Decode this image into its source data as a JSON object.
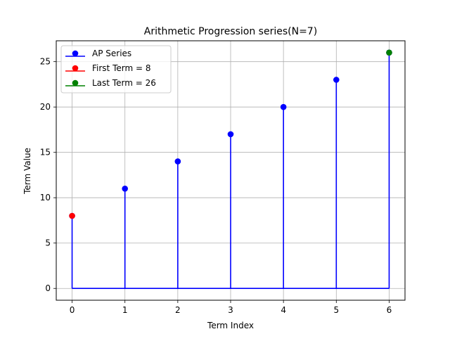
{
  "chart_data": {
    "type": "stem",
    "title": "Arithmetic Progression series(N=7)",
    "xlabel": "Term Index",
    "ylabel": "Term Value",
    "x": [
      0,
      1,
      2,
      3,
      4,
      5,
      6
    ],
    "values": [
      8,
      11,
      14,
      17,
      20,
      23,
      26
    ],
    "xlim": [
      -0.3,
      6.3
    ],
    "ylim": [
      -1.3,
      27.3
    ],
    "x_ticks": [
      0,
      1,
      2,
      3,
      4,
      5,
      6
    ],
    "y_ticks": [
      0,
      5,
      10,
      15,
      20,
      25
    ],
    "grid": true,
    "legend_position": "upper left",
    "series": [
      {
        "name": "AP Series",
        "x": [
          0,
          1,
          2,
          3,
          4,
          5,
          6
        ],
        "values": [
          8,
          11,
          14,
          17,
          20,
          23,
          26
        ],
        "color": "#0000ff",
        "marker": "circle",
        "stem": true,
        "baseline": 0
      },
      {
        "name": "First Term = 8",
        "x": [
          0
        ],
        "values": [
          8
        ],
        "color": "#ff0000",
        "marker": "circle"
      },
      {
        "name": "Last Term = 26",
        "x": [
          6
        ],
        "values": [
          26
        ],
        "color": "#008000",
        "marker": "circle"
      }
    ]
  }
}
